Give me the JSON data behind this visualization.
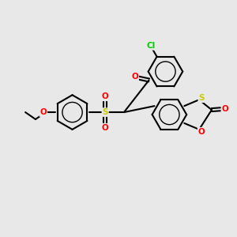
{
  "bg_color": "#e8e8e8",
  "bond_color": "#000000",
  "atom_colors": {
    "Cl": "#00cc00",
    "O": "#ff0000",
    "N": "#0000ff",
    "S": "#cccc00",
    "C": "#000000"
  },
  "figsize": [
    3.0,
    3.0
  ],
  "dpi": 100
}
